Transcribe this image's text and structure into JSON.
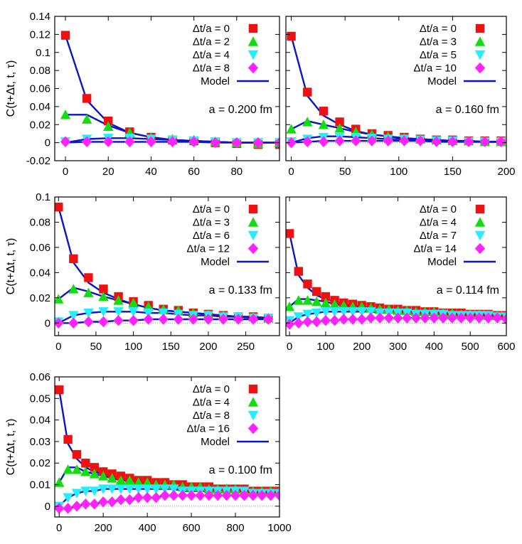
{
  "colors": {
    "series0": "#ee1111",
    "series1": "#11dd11",
    "series2": "#22eeff",
    "series3": "#ff22ff",
    "model": "#0a14c8",
    "zero_line": "#888888"
  },
  "chart_data": [
    {
      "type": "scatter",
      "ylabel": "C(t+Δt, t, τ)",
      "annotation": "a = 0.200 fm",
      "xlim": [
        -5,
        100
      ],
      "ylim": [
        -0.02,
        0.14
      ],
      "xticks": [
        0,
        20,
        40,
        60,
        80
      ],
      "yticks": [
        -0.02,
        0,
        0.02,
        0.04,
        0.06,
        0.08,
        0.1,
        0.12,
        0.14
      ],
      "ytick_labels": [
        "-0.02",
        "0",
        "0.02",
        "0.04",
        "0.06",
        "0.08",
        "0.1",
        "0.12",
        "0.14"
      ],
      "legend": [
        "Δt/a = 0",
        "Δt/a = 2",
        "Δt/a = 4",
        "Δt/a = 8",
        "Model"
      ],
      "x": [
        0,
        10,
        20,
        30,
        40,
        50,
        60,
        70,
        80,
        90,
        100
      ],
      "series": [
        {
          "values": [
            0.119,
            0.049,
            0.024,
            0.012,
            0.006,
            0.003,
            0.002,
            0.0,
            -0.001,
            -0.002,
            -0.002
          ],
          "model": [
            0.119,
            0.047,
            0.022,
            0.011,
            0.006,
            0.003,
            0.002,
            0.001,
            0.0,
            0.0,
            0.0
          ]
        },
        {
          "values": [
            0.031,
            0.026,
            0.018,
            0.011,
            0.006,
            0.004,
            0.003,
            0.001,
            0.0,
            -0.001,
            0.0
          ],
          "model": [
            0.031,
            0.031,
            0.019,
            0.011,
            0.006,
            0.003,
            0.002,
            0.001,
            0.0,
            0.0,
            0.0
          ]
        },
        {
          "values": [
            0.001,
            0.004,
            0.005,
            0.005,
            0.004,
            0.003,
            0.002,
            0.001,
            0.0,
            0.0,
            0.0
          ],
          "model": [
            0.0,
            0.004,
            0.005,
            0.005,
            0.004,
            0.003,
            0.002,
            0.001,
            0.0,
            0.0,
            0.0
          ]
        },
        {
          "values": [
            0.001,
            0.001,
            0.001,
            0.001,
            0.001,
            0.001,
            0.001,
            0.0,
            0.0,
            0.0,
            0.0
          ],
          "model": [
            0.0,
            0.001,
            0.001,
            0.001,
            0.001,
            0.001,
            0.001,
            0.0,
            0.0,
            0.0,
            0.0
          ]
        }
      ]
    },
    {
      "type": "scatter",
      "annotation": "a = 0.160 fm",
      "xlim": [
        -5,
        200
      ],
      "ylim": [
        -0.02,
        0.14
      ],
      "xticks": [
        0,
        50,
        100,
        150,
        200
      ],
      "legend": [
        "Δt/a = 0",
        "Δt/a = 3",
        "Δt/a = 5",
        "Δt/a = 10",
        "Model"
      ],
      "x": [
        0,
        15,
        30,
        45,
        60,
        75,
        90,
        105,
        120,
        135,
        150,
        165,
        180,
        195
      ],
      "series": [
        {
          "values": [
            0.118,
            0.056,
            0.035,
            0.023,
            0.015,
            0.01,
            0.008,
            0.006,
            0.004,
            0.003,
            0.003,
            0.002,
            0.002,
            0.002
          ],
          "model": [
            0.118,
            0.052,
            0.03,
            0.02,
            0.013,
            0.009,
            0.007,
            0.005,
            0.004,
            0.003,
            0.002,
            0.002,
            0.001,
            0.001
          ]
        },
        {
          "values": [
            0.015,
            0.023,
            0.02,
            0.016,
            0.012,
            0.009,
            0.007,
            0.005,
            0.004,
            0.003,
            0.002,
            0.002,
            0.001,
            0.001
          ],
          "model": [
            0.015,
            0.024,
            0.02,
            0.016,
            0.012,
            0.009,
            0.007,
            0.005,
            0.004,
            0.003,
            0.002,
            0.002,
            0.001,
            0.001
          ]
        },
        {
          "values": [
            0.001,
            0.004,
            0.006,
            0.006,
            0.006,
            0.005,
            0.004,
            0.004,
            0.003,
            0.002,
            0.002,
            0.001,
            0.001,
            0.001
          ],
          "model": [
            0.0,
            0.005,
            0.007,
            0.007,
            0.006,
            0.005,
            0.004,
            0.004,
            0.003,
            0.002,
            0.002,
            0.001,
            0.001,
            0.001
          ]
        },
        {
          "values": [
            0.0,
            0.001,
            0.001,
            0.002,
            0.002,
            0.002,
            0.002,
            0.002,
            0.002,
            0.001,
            0.001,
            0.001,
            0.001,
            0.001
          ],
          "model": [
            0.0,
            0.001,
            0.002,
            0.002,
            0.002,
            0.002,
            0.002,
            0.002,
            0.002,
            0.001,
            0.001,
            0.001,
            0.001,
            0.001
          ]
        }
      ]
    },
    {
      "type": "scatter",
      "ylabel": "C(t+Δt, t, τ)",
      "annotation": "a = 0.133 fm",
      "xlim": [
        -5,
        295
      ],
      "ylim": [
        -0.01,
        0.1
      ],
      "xticks": [
        0,
        50,
        100,
        150,
        200,
        250
      ],
      "yticks": [
        0,
        0.02,
        0.04,
        0.06,
        0.08,
        0.1
      ],
      "ytick_labels": [
        "0",
        "0.02",
        "0.04",
        "0.06",
        "0.08",
        "0.1"
      ],
      "legend": [
        "Δt/a = 0",
        "Δt/a = 3",
        "Δt/a = 6",
        "Δt/a = 12",
        "Model"
      ],
      "x": [
        0,
        20,
        40,
        60,
        80,
        100,
        120,
        140,
        160,
        180,
        200,
        220,
        240,
        260,
        280
      ],
      "series": [
        {
          "values": [
            0.092,
            0.051,
            0.036,
            0.027,
            0.021,
            0.017,
            0.014,
            0.011,
            0.01,
            0.008,
            0.007,
            0.006,
            0.005,
            0.005,
            0.004
          ],
          "model": [
            0.092,
            0.048,
            0.032,
            0.024,
            0.019,
            0.015,
            0.012,
            0.01,
            0.009,
            0.008,
            0.007,
            0.006,
            0.005,
            0.005,
            0.004
          ]
        },
        {
          "values": [
            0.019,
            0.027,
            0.024,
            0.021,
            0.018,
            0.016,
            0.013,
            0.011,
            0.01,
            0.008,
            0.007,
            0.006,
            0.005,
            0.005,
            0.004
          ],
          "model": [
            0.019,
            0.028,
            0.025,
            0.021,
            0.018,
            0.015,
            0.012,
            0.01,
            0.009,
            0.008,
            0.007,
            0.006,
            0.005,
            0.005,
            0.004
          ]
        },
        {
          "values": [
            0.001,
            0.006,
            0.008,
            0.009,
            0.009,
            0.009,
            0.008,
            0.008,
            0.007,
            0.006,
            0.006,
            0.005,
            0.005,
            0.004,
            0.004
          ],
          "model": [
            0.0,
            0.006,
            0.008,
            0.009,
            0.009,
            0.009,
            0.008,
            0.008,
            0.007,
            0.006,
            0.006,
            0.005,
            0.005,
            0.004,
            0.004
          ]
        },
        {
          "values": [
            0.0,
            0.0,
            0.001,
            0.001,
            0.002,
            0.002,
            0.003,
            0.003,
            0.003,
            0.003,
            0.003,
            0.003,
            0.003,
            0.003,
            0.003
          ],
          "model": [
            0.0,
            0.0,
            0.001,
            0.001,
            0.002,
            0.002,
            0.003,
            0.003,
            0.003,
            0.003,
            0.003,
            0.003,
            0.003,
            0.003,
            0.003
          ]
        }
      ]
    },
    {
      "type": "scatter",
      "annotation": "a = 0.114 fm",
      "xlim": [
        -10,
        600
      ],
      "ylim": [
        -0.01,
        0.1
      ],
      "xticks": [
        0,
        100,
        200,
        300,
        400,
        500,
        600
      ],
      "legend": [
        "Δt/a = 0",
        "Δt/a = 4",
        "Δt/a = 7",
        "Δt/a = 14",
        "Model"
      ],
      "x": [
        0,
        25,
        50,
        75,
        100,
        125,
        150,
        175,
        200,
        225,
        250,
        275,
        300,
        325,
        350,
        375,
        400,
        425,
        450,
        475,
        500,
        525,
        550,
        575,
        600
      ],
      "series": [
        {
          "values": [
            0.071,
            0.041,
            0.031,
            0.025,
            0.021,
            0.018,
            0.016,
            0.015,
            0.014,
            0.013,
            0.012,
            0.011,
            0.011,
            0.01,
            0.01,
            0.009,
            0.009,
            0.008,
            0.008,
            0.008,
            0.007,
            0.007,
            0.007,
            0.006,
            0.006
          ],
          "model": [
            0.071,
            0.038,
            0.028,
            0.022,
            0.019,
            0.017,
            0.015,
            0.014,
            0.013,
            0.012,
            0.011,
            0.01,
            0.01,
            0.009,
            0.009,
            0.008,
            0.008,
            0.008,
            0.007,
            0.007,
            0.007,
            0.006,
            0.006,
            0.006,
            0.006
          ]
        },
        {
          "values": [
            0.013,
            0.018,
            0.018,
            0.017,
            0.016,
            0.015,
            0.014,
            0.013,
            0.013,
            0.012,
            0.011,
            0.011,
            0.01,
            0.01,
            0.009,
            0.009,
            0.009,
            0.008,
            0.008,
            0.007,
            0.007,
            0.007,
            0.006,
            0.006,
            0.006
          ],
          "model": [
            0.013,
            0.019,
            0.019,
            0.018,
            0.017,
            0.015,
            0.014,
            0.013,
            0.013,
            0.012,
            0.011,
            0.011,
            0.01,
            0.01,
            0.009,
            0.009,
            0.009,
            0.008,
            0.008,
            0.007,
            0.007,
            0.007,
            0.006,
            0.006,
            0.006
          ]
        },
        {
          "values": [
            0.002,
            0.005,
            0.007,
            0.008,
            0.009,
            0.009,
            0.009,
            0.009,
            0.009,
            0.009,
            0.008,
            0.008,
            0.008,
            0.008,
            0.007,
            0.007,
            0.007,
            0.007,
            0.006,
            0.006,
            0.006,
            0.006,
            0.006,
            0.005,
            0.005
          ],
          "model": [
            0.0,
            0.005,
            0.007,
            0.008,
            0.009,
            0.009,
            0.009,
            0.009,
            0.009,
            0.009,
            0.008,
            0.008,
            0.008,
            0.008,
            0.007,
            0.007,
            0.007,
            0.007,
            0.006,
            0.006,
            0.006,
            0.006,
            0.006,
            0.005,
            0.005
          ]
        },
        {
          "values": [
            -0.001,
            0.0,
            0.001,
            0.001,
            0.002,
            0.002,
            0.003,
            0.003,
            0.003,
            0.004,
            0.004,
            0.004,
            0.004,
            0.004,
            0.004,
            0.004,
            0.004,
            0.004,
            0.004,
            0.004,
            0.004,
            0.004,
            0.004,
            0.004,
            0.003
          ],
          "model": [
            -0.001,
            0.0,
            0.001,
            0.001,
            0.002,
            0.002,
            0.003,
            0.003,
            0.003,
            0.004,
            0.004,
            0.004,
            0.004,
            0.004,
            0.004,
            0.004,
            0.004,
            0.004,
            0.004,
            0.004,
            0.004,
            0.004,
            0.004,
            0.004,
            0.003
          ]
        }
      ]
    },
    {
      "type": "scatter",
      "ylabel": "C(t+Δt, t, τ)",
      "annotation": "a = 0.100 fm",
      "xlim": [
        -20,
        1000
      ],
      "ylim": [
        -0.005,
        0.06
      ],
      "xticks": [
        0,
        200,
        400,
        600,
        800,
        1000
      ],
      "yticks": [
        0,
        0.01,
        0.02,
        0.03,
        0.04,
        0.05,
        0.06
      ],
      "ytick_labels": [
        "0",
        "0.01",
        "0.02",
        "0.03",
        "0.04",
        "0.05",
        "0.06"
      ],
      "legend": [
        "Δt/a = 0",
        "Δt/a = 4",
        "Δt/a = 8",
        "Δt/a = 16",
        "Model"
      ],
      "x": [
        0,
        40,
        80,
        120,
        160,
        200,
        240,
        280,
        320,
        360,
        400,
        440,
        480,
        520,
        560,
        600,
        640,
        680,
        720,
        760,
        800,
        840,
        880,
        920,
        960,
        1000
      ],
      "series": [
        {
          "values": [
            0.054,
            0.031,
            0.024,
            0.02,
            0.018,
            0.016,
            0.015,
            0.014,
            0.013,
            0.012,
            0.012,
            0.011,
            0.011,
            0.01,
            0.01,
            0.009,
            0.009,
            0.009,
            0.008,
            0.008,
            0.008,
            0.008,
            0.007,
            0.007,
            0.007,
            0.007
          ],
          "model": [
            0.054,
            0.029,
            0.022,
            0.018,
            0.016,
            0.015,
            0.014,
            0.013,
            0.012,
            0.011,
            0.011,
            0.01,
            0.01,
            0.01,
            0.009,
            0.009,
            0.009,
            0.008,
            0.008,
            0.008,
            0.008,
            0.007,
            0.007,
            0.007,
            0.007,
            0.007
          ]
        },
        {
          "values": [
            0.011,
            0.017,
            0.017,
            0.016,
            0.015,
            0.014,
            0.013,
            0.012,
            0.012,
            0.011,
            0.011,
            0.01,
            0.01,
            0.01,
            0.009,
            0.009,
            0.009,
            0.008,
            0.008,
            0.008,
            0.008,
            0.007,
            0.007,
            0.007,
            0.007,
            0.007
          ],
          "model": [
            0.011,
            0.018,
            0.018,
            0.016,
            0.015,
            0.014,
            0.013,
            0.012,
            0.012,
            0.011,
            0.011,
            0.01,
            0.01,
            0.01,
            0.009,
            0.009,
            0.009,
            0.008,
            0.008,
            0.008,
            0.008,
            0.007,
            0.007,
            0.007,
            0.007,
            0.007
          ]
        },
        {
          "values": [
            0.0,
            0.004,
            0.006,
            0.007,
            0.007,
            0.008,
            0.008,
            0.008,
            0.008,
            0.008,
            0.008,
            0.008,
            0.008,
            0.008,
            0.007,
            0.007,
            0.007,
            0.007,
            0.007,
            0.007,
            0.007,
            0.007,
            0.006,
            0.006,
            0.006,
            0.006
          ],
          "model": [
            0.0,
            0.004,
            0.006,
            0.007,
            0.007,
            0.008,
            0.008,
            0.008,
            0.008,
            0.008,
            0.008,
            0.008,
            0.008,
            0.008,
            0.007,
            0.007,
            0.007,
            0.007,
            0.007,
            0.007,
            0.007,
            0.007,
            0.006,
            0.006,
            0.006,
            0.006
          ]
        },
        {
          "values": [
            -0.001,
            -0.001,
            0.0,
            0.001,
            0.001,
            0.002,
            0.002,
            0.003,
            0.003,
            0.004,
            0.004,
            0.004,
            0.005,
            0.005,
            0.005,
            0.005,
            0.005,
            0.005,
            0.005,
            0.005,
            0.005,
            0.005,
            0.005,
            0.005,
            0.005,
            0.005
          ],
          "model": [
            -0.001,
            -0.001,
            0.0,
            0.001,
            0.001,
            0.002,
            0.002,
            0.003,
            0.003,
            0.004,
            0.004,
            0.004,
            0.005,
            0.005,
            0.005,
            0.005,
            0.005,
            0.005,
            0.005,
            0.005,
            0.005,
            0.005,
            0.005,
            0.005,
            0.005,
            0.005
          ]
        }
      ]
    }
  ]
}
